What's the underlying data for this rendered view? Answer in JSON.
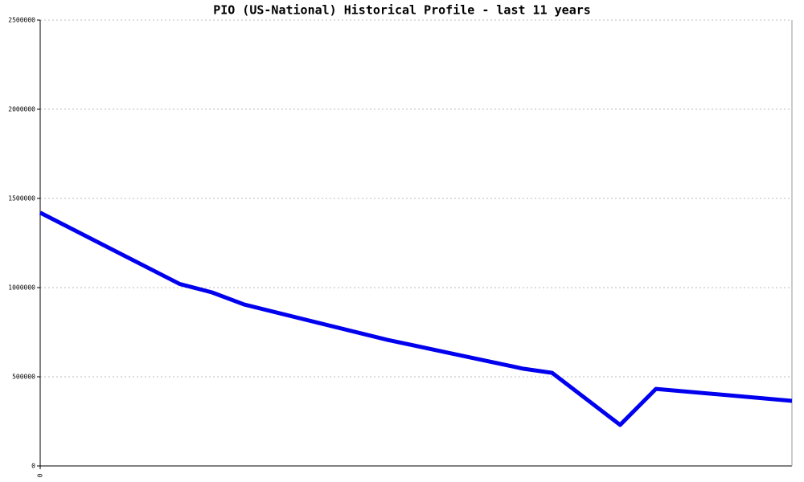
{
  "chart_data": {
    "type": "line",
    "title": "PIO (US-National) Historical Profile - last 11 years",
    "x": [
      0,
      3.9,
      4.8,
      5.7,
      9.7,
      11.6,
      13.5,
      14.3,
      16.2,
      17.2,
      21
    ],
    "series": [
      {
        "color": "#0000ee",
        "values": [
          1420000,
          1020000,
          973000,
          905000,
          707000,
          626000,
          545000,
          522000,
          230000,
          432000,
          365000
        ]
      }
    ],
    "xlim": [
      0,
      21
    ],
    "xticks": [
      0
    ],
    "ylim": [
      0,
      2500000
    ],
    "yticks": [
      0,
      500000,
      1000000,
      1500000,
      2000000,
      2500000
    ],
    "grid": true
  }
}
